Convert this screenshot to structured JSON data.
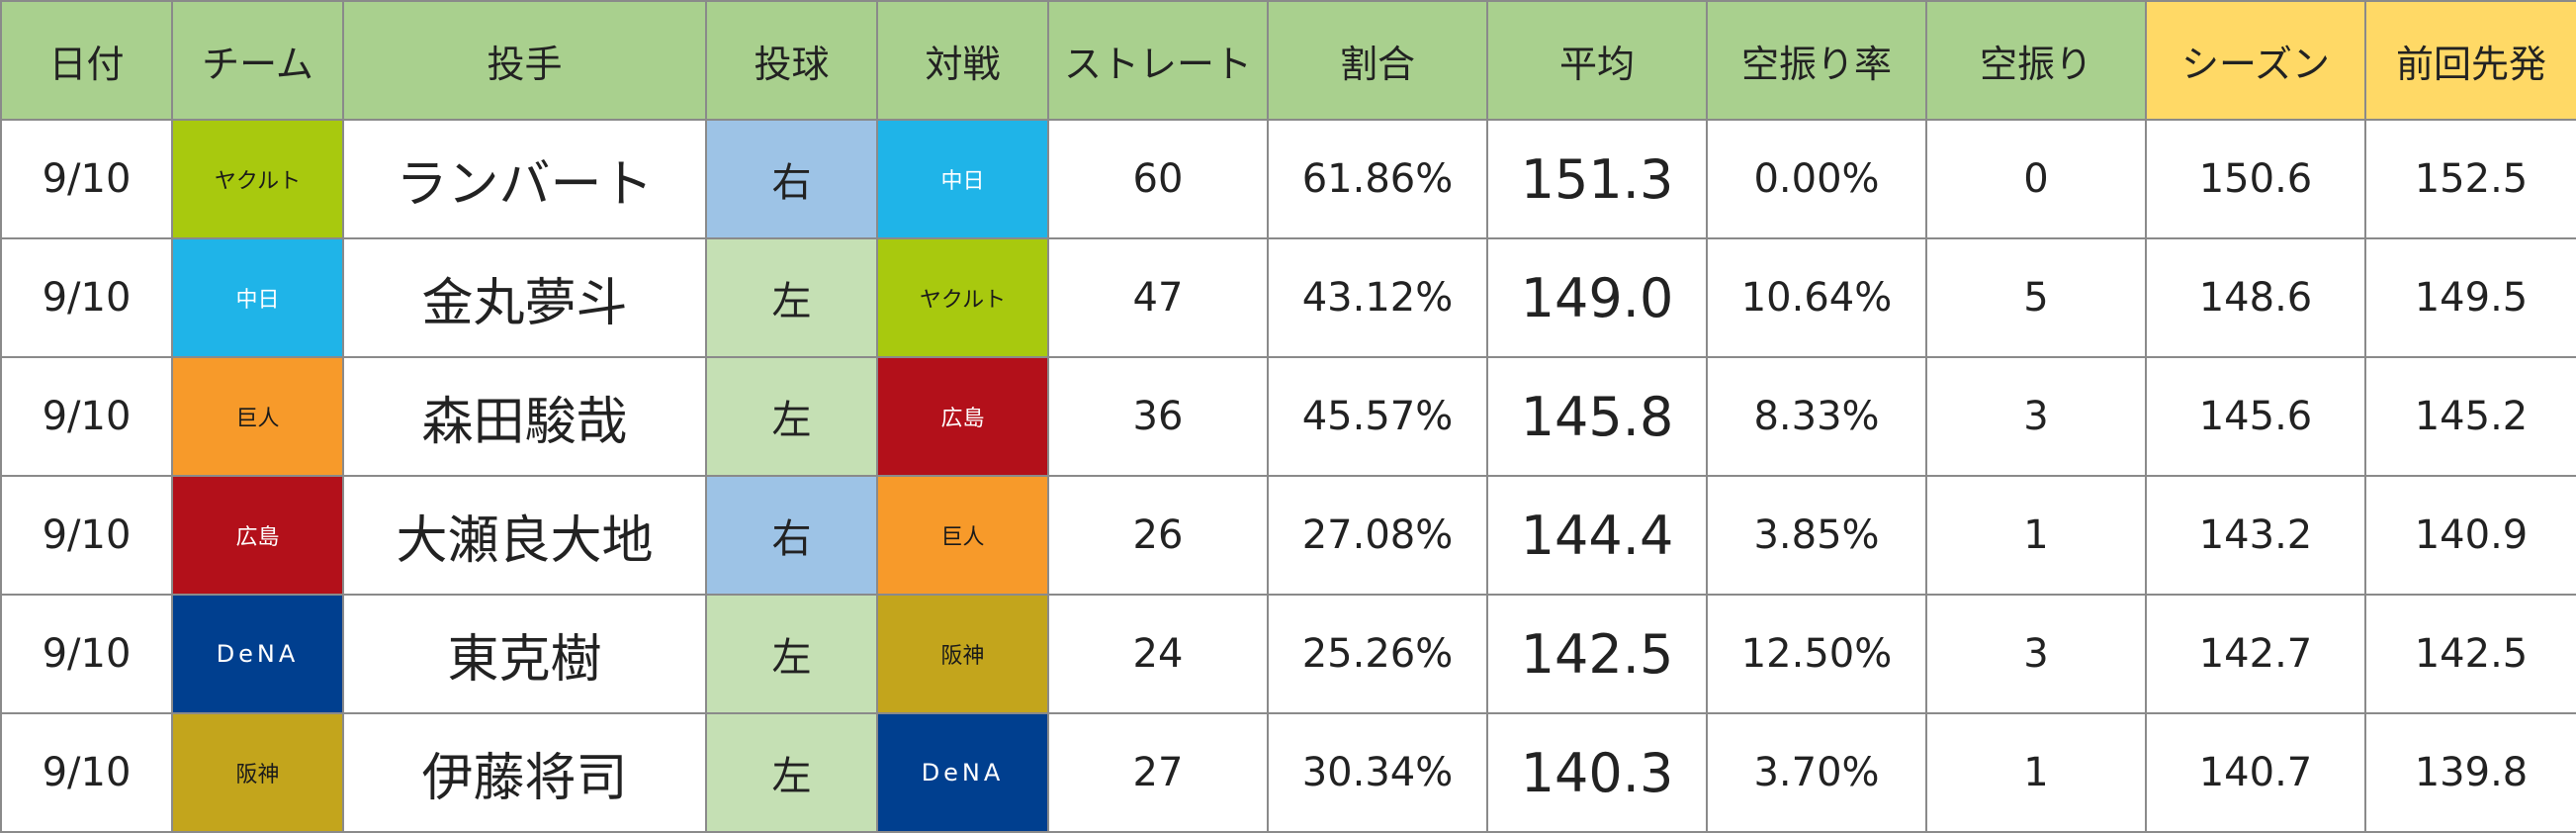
{
  "headers": [
    "日付",
    "チーム",
    "投手",
    "投球",
    "対戦",
    "ストレート",
    "割合",
    "平均",
    "空振り率",
    "空振り",
    "シーズン",
    "前回先発"
  ],
  "team_colors": {
    "ヤクルト": {
      "bg": "#a8c90e",
      "fg": "#1a1a1a"
    },
    "中日": {
      "bg": "#1fb4e8",
      "fg": "#ffffff"
    },
    "巨人": {
      "bg": "#f79a2a",
      "fg": "#1a1a1a"
    },
    "広島": {
      "bg": "#b3101a",
      "fg": "#ffffff"
    },
    "DeNA": {
      "bg": "#003f8f",
      "fg": "#ffffff"
    },
    "阪神": {
      "bg": "#c3a51c",
      "fg": "#1a1a1a"
    }
  },
  "rows": [
    {
      "date": "9/10",
      "team": "ヤクルト",
      "pitcher": "ランバート",
      "hand": "右",
      "opponent": "中日",
      "straight": "60",
      "ratio": "61.86%",
      "avg": "151.3",
      "whiff_rate": "0.00%",
      "whiffs": "0",
      "season": "150.6",
      "last_start": "152.5"
    },
    {
      "date": "9/10",
      "team": "中日",
      "pitcher": "金丸夢斗",
      "hand": "左",
      "opponent": "ヤクルト",
      "straight": "47",
      "ratio": "43.12%",
      "avg": "149.0",
      "whiff_rate": "10.64%",
      "whiffs": "5",
      "season": "148.6",
      "last_start": "149.5"
    },
    {
      "date": "9/10",
      "team": "巨人",
      "pitcher": "森田駿哉",
      "hand": "左",
      "opponent": "広島",
      "straight": "36",
      "ratio": "45.57%",
      "avg": "145.8",
      "whiff_rate": "8.33%",
      "whiffs": "3",
      "season": "145.6",
      "last_start": "145.2"
    },
    {
      "date": "9/10",
      "team": "広島",
      "pitcher": "大瀬良大地",
      "hand": "右",
      "opponent": "巨人",
      "straight": "26",
      "ratio": "27.08%",
      "avg": "144.4",
      "whiff_rate": "3.85%",
      "whiffs": "1",
      "season": "143.2",
      "last_start": "140.9"
    },
    {
      "date": "9/10",
      "team": "DeNA",
      "pitcher": "東克樹",
      "hand": "左",
      "opponent": "阪神",
      "straight": "24",
      "ratio": "25.26%",
      "avg": "142.5",
      "whiff_rate": "12.50%",
      "whiffs": "3",
      "season": "142.7",
      "last_start": "142.5"
    },
    {
      "date": "9/10",
      "team": "阪神",
      "pitcher": "伊藤将司",
      "hand": "左",
      "opponent": "DeNA",
      "straight": "27",
      "ratio": "30.34%",
      "avg": "140.3",
      "whiff_rate": "3.70%",
      "whiffs": "1",
      "season": "140.7",
      "last_start": "139.8"
    }
  ]
}
